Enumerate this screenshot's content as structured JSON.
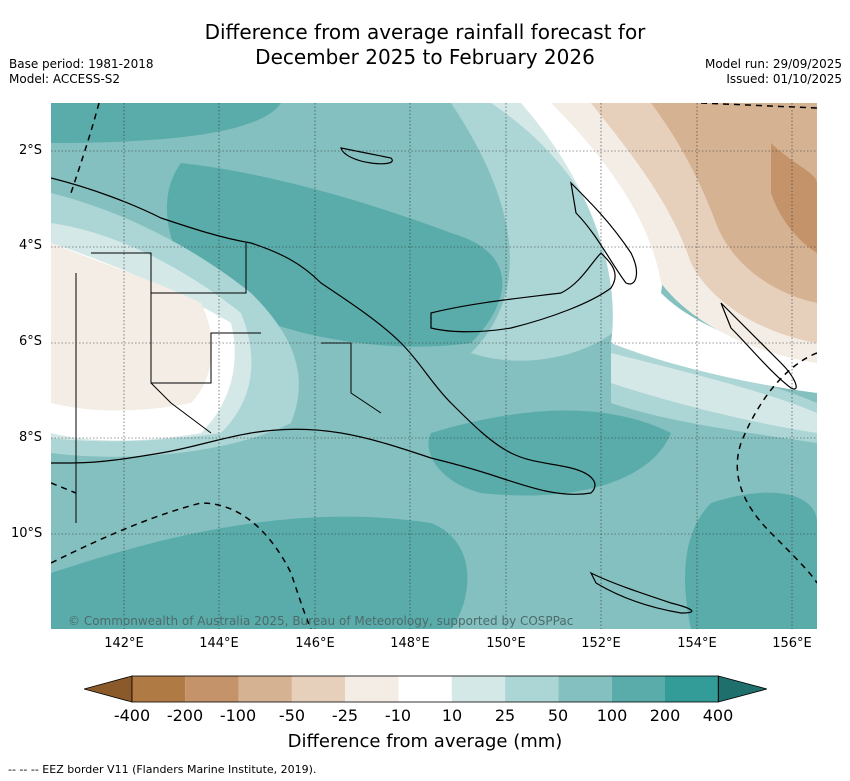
{
  "header": {
    "title_line1": "Difference from average rainfall forecast for",
    "title_line2": "December 2025 to February 2026",
    "base_period": "Base period: 1981-2018",
    "model": "Model: ACCESS-S2",
    "model_run": "Model run: 29/09/2025",
    "issued": "Issued: 01/10/2025"
  },
  "map": {
    "lat_labels": [
      "2°S",
      "4°S",
      "6°S",
      "8°S",
      "10°S"
    ],
    "lon_labels": [
      "142°E",
      "144°E",
      "146°E",
      "148°E",
      "150°E",
      "152°E",
      "154°E",
      "156°E"
    ],
    "copyright": "© Commonwealth of Australia 2025, Bureau of Meteorology, supported by COSPPac"
  },
  "colorbar": {
    "ticks": [
      "-400",
      "-200",
      "-100",
      "-50",
      "-25",
      "-10",
      "10",
      "25",
      "50",
      "100",
      "200",
      "400"
    ],
    "colors": [
      "#8b5a2b",
      "#b07a45",
      "#c4936a",
      "#d5b292",
      "#e6d0bc",
      "#f3ede6",
      "#ffffff",
      "#d5e8e8",
      "#acd5d5",
      "#84c0bf",
      "#5aacab",
      "#339b98",
      "#1f6f6c"
    ],
    "title": "Difference from average (mm)"
  },
  "footer": {
    "eez_note": "--  --  -- EEZ border V11 (Flanders Marine Institute, 2019)."
  }
}
